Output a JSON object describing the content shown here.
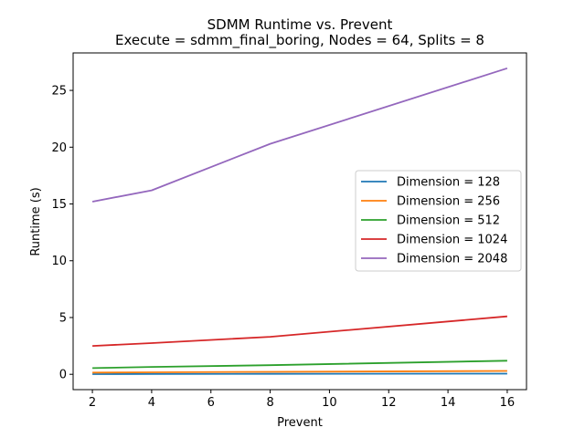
{
  "chart_data": {
    "type": "line",
    "title": "SDMM Runtime vs. Prevent",
    "subtitle": "Execute = sdmm_final_boring, Nodes = 64, Splits = 8",
    "xlabel": "Prevent",
    "ylabel": "Runtime (s)",
    "x": [
      2,
      4,
      8,
      16
    ],
    "xlim": [
      1.35,
      16.65
    ],
    "ylim": [
      -1.35,
      28.3
    ],
    "xticks": [
      2,
      4,
      6,
      8,
      10,
      12,
      14,
      16
    ],
    "yticks": [
      0,
      5,
      10,
      15,
      20,
      25
    ],
    "legend_position": "center-right",
    "series": [
      {
        "name": "Dimension = 128",
        "color": "#1f77b4",
        "values": [
          0.02,
          0.03,
          0.04,
          0.06
        ]
      },
      {
        "name": "Dimension = 256",
        "color": "#ff7f0e",
        "values": [
          0.15,
          0.18,
          0.22,
          0.3
        ]
      },
      {
        "name": "Dimension = 512",
        "color": "#2ca02c",
        "values": [
          0.55,
          0.65,
          0.8,
          1.2
        ]
      },
      {
        "name": "Dimension = 1024",
        "color": "#d62728",
        "values": [
          2.5,
          2.75,
          3.3,
          5.1
        ]
      },
      {
        "name": "Dimension = 2048",
        "color": "#9467bd",
        "values": [
          15.2,
          16.2,
          20.3,
          26.95
        ]
      }
    ]
  }
}
